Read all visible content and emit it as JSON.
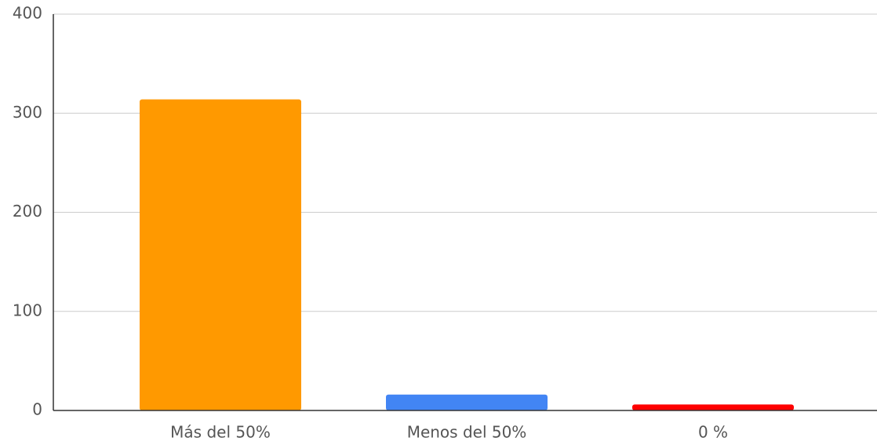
{
  "chart_data": {
    "type": "bar",
    "categories": [
      "Más del 50%",
      "Menos del 50%",
      "0 %"
    ],
    "values": [
      314,
      16,
      6
    ],
    "colors": [
      "#ff9900",
      "#4285f4",
      "#ff0000"
    ],
    "ylim": [
      0,
      400
    ],
    "yticks": [
      0,
      100,
      200,
      300,
      400
    ],
    "grid": true
  }
}
